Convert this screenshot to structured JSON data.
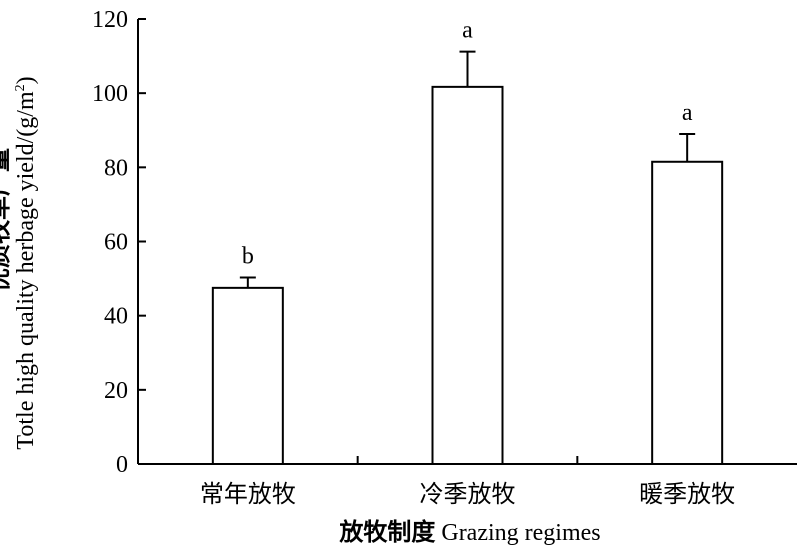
{
  "chart_data": {
    "type": "bar",
    "categories": [
      "常年放牧",
      "冷季放牧",
      "暖季放牧"
    ],
    "values": [
      47.5,
      101.7,
      81.5
    ],
    "errors": [
      2.8,
      9.5,
      7.5
    ],
    "significance": [
      "b",
      "a",
      "a"
    ],
    "xlabel_cn": "放牧制度",
    "xlabel_en": " Grazing regimes",
    "ylabel_cn": "优质牧草产量",
    "ylabel_en": "Totle high quality herbage yield/(g/m",
    "ylabel_sup": "2",
    "ylabel_end": ")",
    "ylim": [
      0,
      120
    ],
    "yticks": [
      "0",
      "20",
      "40",
      "60",
      "80",
      "100",
      "120"
    ],
    "grid": false,
    "legend": "none",
    "colors": {
      "bar_fill": "#ffffff",
      "bar_stroke": "#000000",
      "axis": "#000000"
    }
  }
}
